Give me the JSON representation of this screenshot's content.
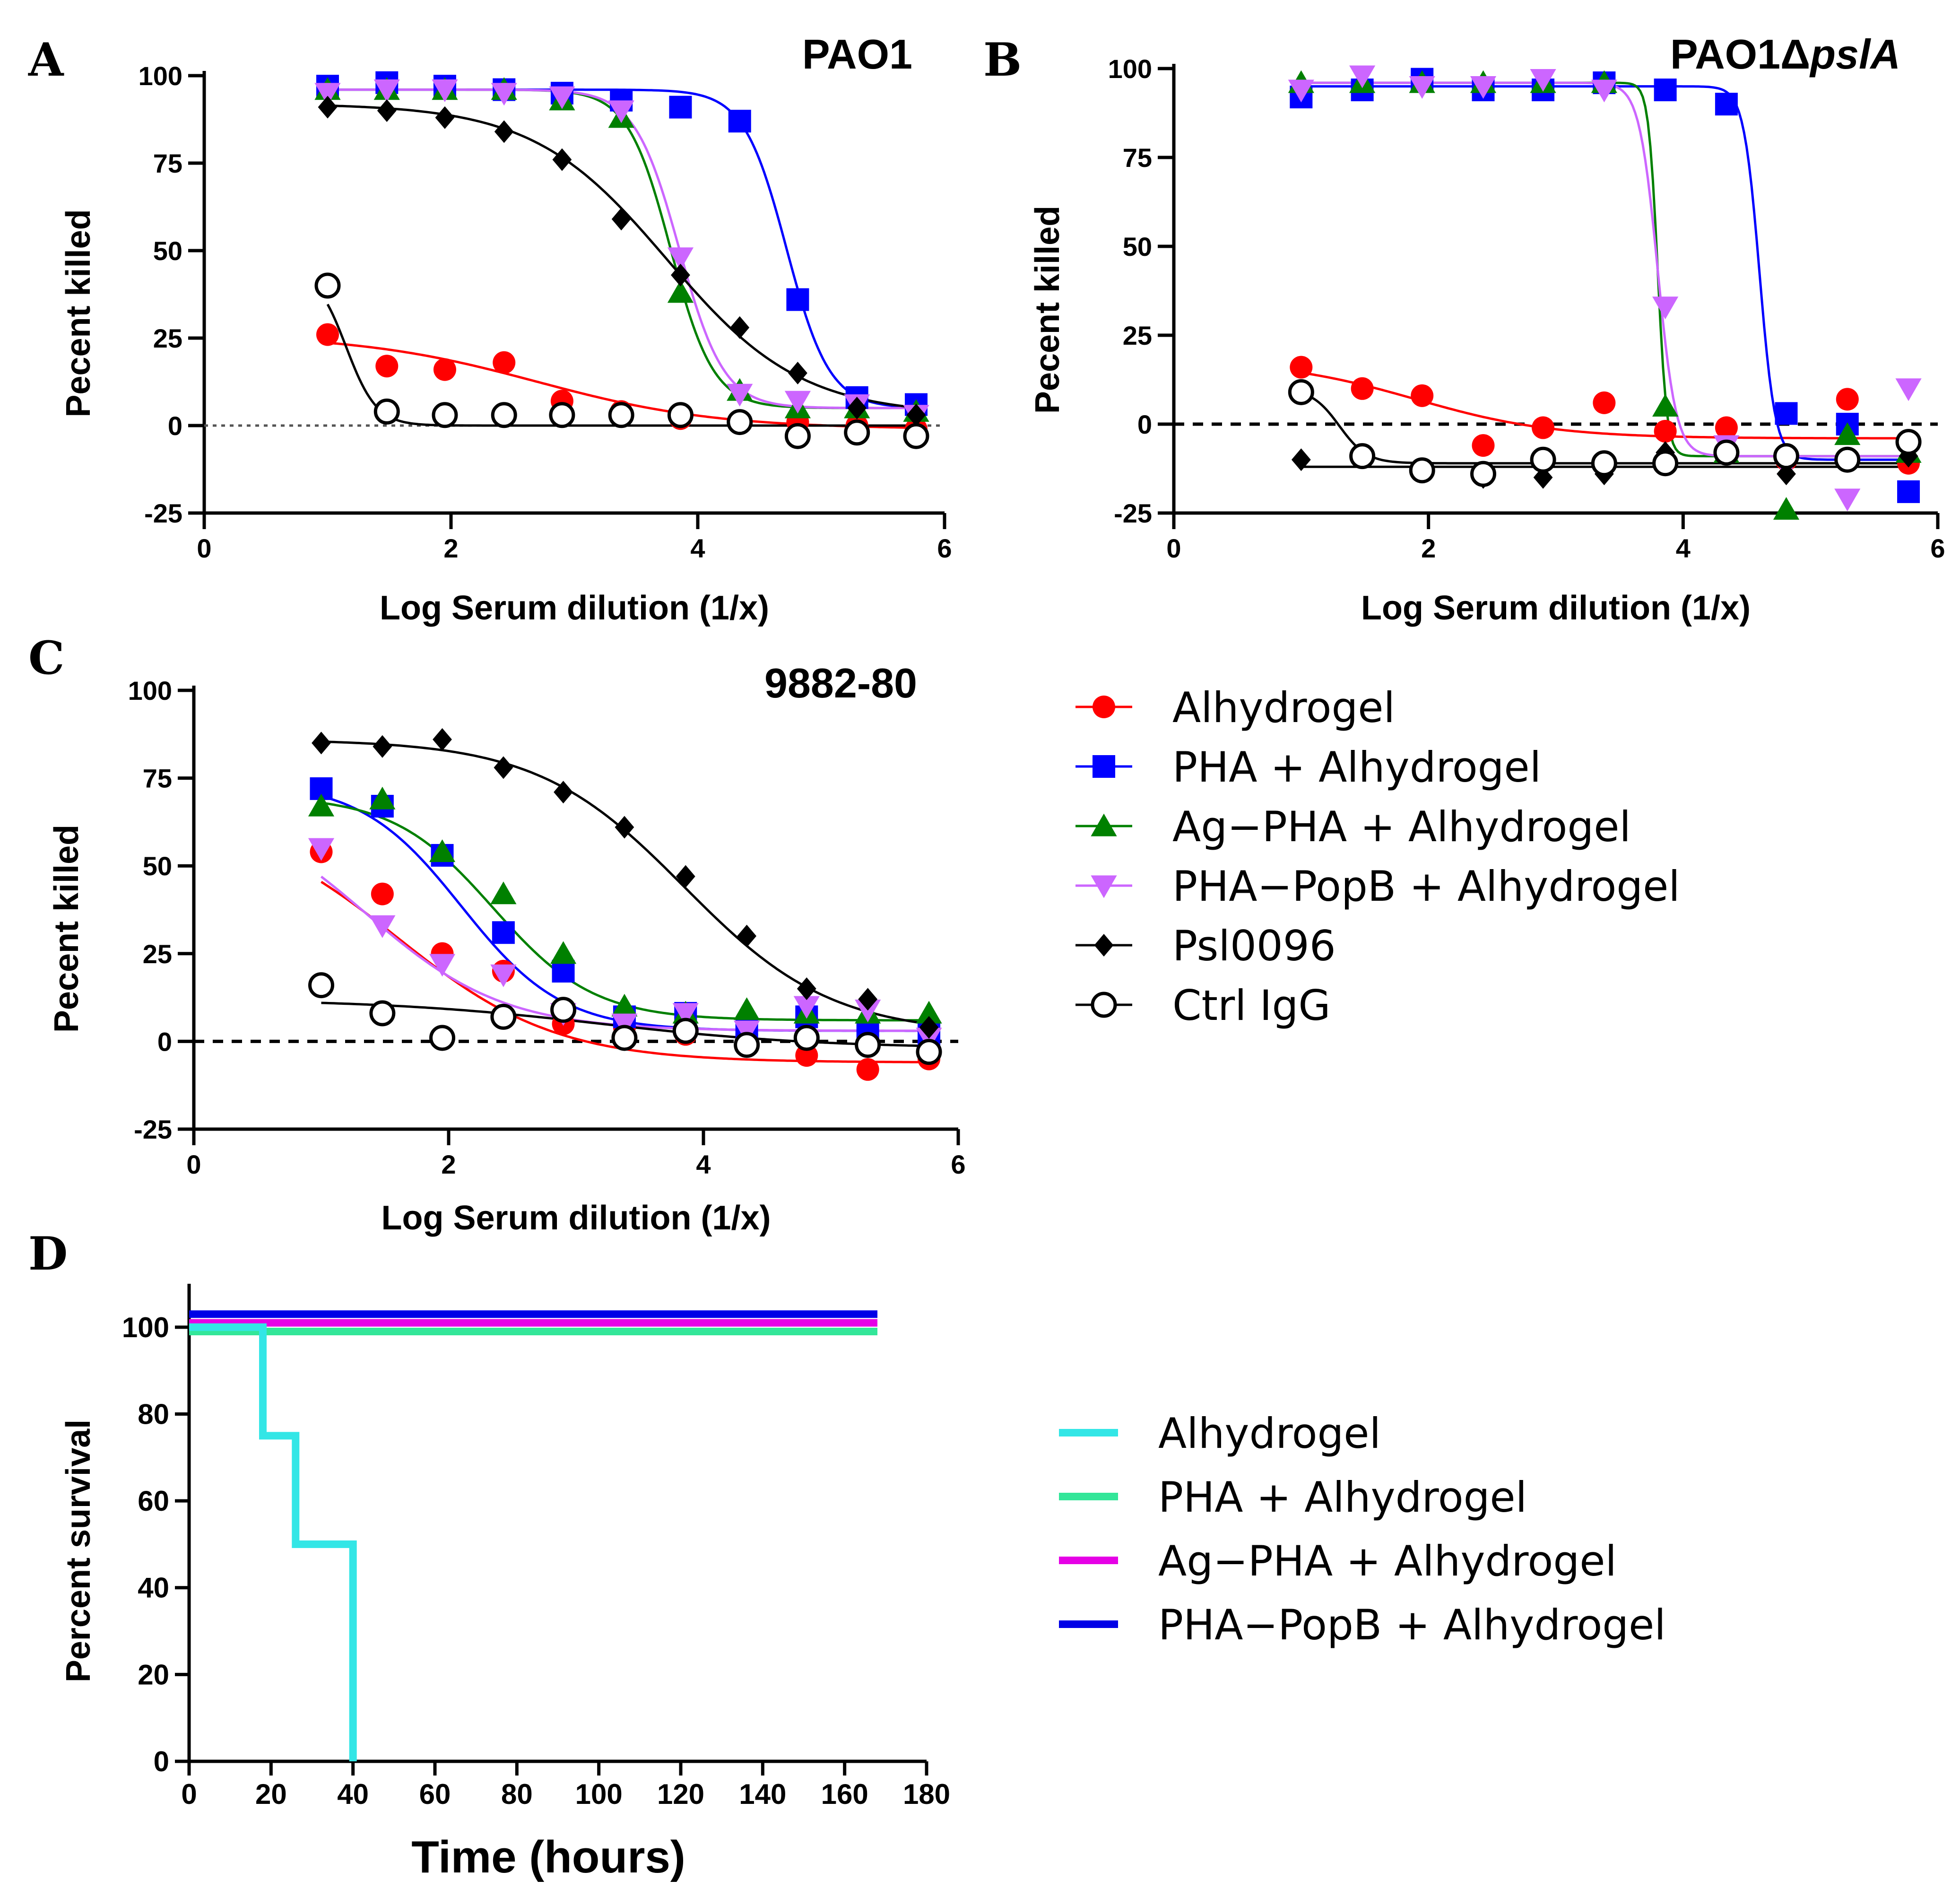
{
  "figure": {
    "legend_top": {
      "entries": [
        {
          "label": "Alhydrogel",
          "color": "#ff0000",
          "marker": "circle"
        },
        {
          "label": "PHA + Alhydrogel",
          "color": "#0000ff",
          "marker": "square"
        },
        {
          "label": "Ag−PHA + Alhydrogel",
          "color": "#008000",
          "marker": "triangle-up"
        },
        {
          "label": "PHA−PopB + Alhydrogel",
          "color": "#cc66ff",
          "marker": "triangle-down"
        },
        {
          "label": "Psl0096",
          "color": "#000000",
          "marker": "diamond"
        },
        {
          "label": "Ctrl IgG",
          "color": "#000000",
          "marker": "open-circle"
        }
      ]
    },
    "legend_bottom": {
      "entries": [
        {
          "label": "Alhydrogel",
          "color": "#33e6e6"
        },
        {
          "label": "PHA + Alhydrogel",
          "color": "#33e699"
        },
        {
          "label": "Ag−PHA + Alhydrogel",
          "color": "#e600e6"
        },
        {
          "label": "PHA−PopB + Alhydrogel",
          "color": "#0000e6"
        }
      ]
    }
  },
  "chart_data": [
    {
      "panel": "A",
      "type": "scatter",
      "title": "PAO1",
      "xlabel": "Log Serum dilution (1/x)",
      "ylabel": "Pecent killed",
      "xlim": [
        0,
        6
      ],
      "ylim": [
        -25,
        100
      ],
      "xticks": [
        0,
        2,
        4,
        6
      ],
      "yticks": [
        -25,
        0,
        25,
        50,
        75,
        100
      ],
      "zero_line": "dotted",
      "x": [
        1.0,
        1.48,
        1.95,
        2.43,
        2.9,
        3.38,
        3.86,
        4.34,
        4.81,
        5.29,
        5.77
      ],
      "series": [
        {
          "name": "Alhydrogel",
          "values": [
            26,
            17,
            16,
            18,
            7,
            4,
            2,
            1,
            1,
            0,
            -1
          ],
          "fit": {
            "top": 26,
            "bottom": -1,
            "ec50": 2.7,
            "hill": 0.6
          }
        },
        {
          "name": "PHA + Alhydrogel",
          "values": [
            97,
            98,
            97,
            96,
            95,
            93,
            91,
            87,
            36,
            8,
            6
          ],
          "fit": {
            "top": 96,
            "bottom": 5,
            "ec50": 4.72,
            "hill": 2.5
          }
        },
        {
          "name": "Ag−PHA + Alhydrogel",
          "values": [
            96,
            96,
            96,
            96,
            93,
            88,
            38,
            10,
            5,
            5,
            4
          ],
          "fit": {
            "top": 96,
            "bottom": 5,
            "ec50": 3.78,
            "hill": 2.5
          }
        },
        {
          "name": "PHA−PopB + Alhydrogel",
          "values": [
            95,
            96,
            96,
            95,
            94,
            90,
            48,
            9,
            7,
            6,
            3
          ],
          "fit": {
            "top": 96,
            "bottom": 5,
            "ec50": 3.85,
            "hill": 2.4
          }
        },
        {
          "name": "Psl0096",
          "values": [
            91,
            90,
            88,
            84,
            76,
            59,
            43,
            28,
            15,
            5,
            3
          ],
          "fit": {
            "top": 92,
            "bottom": 3,
            "ec50": 3.75,
            "hill": 0.8
          }
        },
        {
          "name": "Ctrl IgG",
          "values": [
            40,
            4,
            3,
            3,
            3,
            3,
            3,
            1,
            -3,
            -2,
            -3
          ],
          "fit": {
            "top": 45,
            "bottom": 0,
            "ec50": 1.15,
            "hill": 3.5
          }
        }
      ]
    },
    {
      "panel": "B",
      "type": "scatter",
      "title": "PAO1Δ",
      "title_italic": "pslA",
      "xlabel": "Log Serum dilution (1/x)",
      "ylabel": "Pecent killed",
      "xlim": [
        0,
        6
      ],
      "ylim": [
        -25,
        100
      ],
      "xticks": [
        0,
        2,
        4,
        6
      ],
      "yticks": [
        -25,
        0,
        25,
        50,
        75,
        100
      ],
      "zero_line": "dashed",
      "x": [
        1.0,
        1.48,
        1.95,
        2.43,
        2.9,
        3.38,
        3.86,
        4.34,
        4.81,
        5.29,
        5.77
      ],
      "series": [
        {
          "name": "Alhydrogel",
          "values": [
            16,
            10,
            8,
            -6,
            -1,
            6,
            -2,
            -1,
            -10,
            7,
            -11
          ],
          "fit": {
            "top": 18,
            "bottom": -4,
            "ec50": 1.9,
            "hill": 0.8
          }
        },
        {
          "name": "PHA + Alhydrogel",
          "values": [
            92,
            94,
            97,
            94,
            94,
            96,
            94,
            90,
            3,
            0,
            -19
          ],
          "fit": {
            "top": 95,
            "bottom": -10,
            "ec50": 4.6,
            "hill": 7
          }
        },
        {
          "name": "Ag−PHA + Alhydrogel",
          "values": [
            96,
            96,
            96,
            96,
            96,
            96,
            5,
            -8,
            -24,
            -3,
            -8
          ],
          "fit": {
            "top": 96,
            "bottom": -9,
            "ec50": 3.8,
            "hill": 12
          }
        },
        {
          "name": "PHA−PopB + Alhydrogel",
          "values": [
            94,
            98,
            95,
            95,
            97,
            94,
            33,
            -6,
            -12,
            -21,
            10
          ],
          "fit": {
            "top": 96,
            "bottom": -9,
            "ec50": 3.8,
            "hill": 6
          }
        },
        {
          "name": "Psl0096",
          "values": [
            -10,
            -9,
            -13,
            -15,
            -15,
            -14,
            -8,
            -8,
            -14,
            -10,
            -9
          ],
          "fit": {
            "top": -12,
            "bottom": -12,
            "ec50": 3,
            "hill": 1
          }
        },
        {
          "name": "Ctrl IgG",
          "values": [
            9,
            -9,
            -13,
            -14,
            -10,
            -11,
            -11,
            -8,
            -9,
            -10,
            -5
          ],
          "fit": {
            "top": 10,
            "bottom": -11,
            "ec50": 1.3,
            "hill": 4
          }
        }
      ]
    },
    {
      "panel": "C",
      "type": "scatter",
      "title": "9882-80",
      "xlabel": "Log Serum dilution (1/x)",
      "ylabel": "Pecent killed",
      "xlim": [
        0,
        6
      ],
      "ylim": [
        -25,
        100
      ],
      "xticks": [
        0,
        2,
        4,
        6
      ],
      "yticks": [
        -25,
        0,
        25,
        50,
        75,
        100
      ],
      "zero_line": "dashed",
      "x": [
        1.0,
        1.48,
        1.95,
        2.43,
        2.9,
        3.38,
        3.86,
        4.34,
        4.81,
        5.29,
        5.77
      ],
      "series": [
        {
          "name": "Alhydrogel",
          "values": [
            54,
            42,
            25,
            20,
            5,
            4,
            2,
            2,
            -4,
            -8,
            -5
          ],
          "fit": {
            "top": 65,
            "bottom": -6,
            "ec50": 1.6,
            "hill": 0.7
          }
        },
        {
          "name": "PHA + Alhydrogel",
          "values": [
            72,
            67,
            53,
            31,
            20,
            7,
            8,
            3,
            7,
            2,
            2
          ],
          "fit": {
            "top": 74,
            "bottom": 3,
            "ec50": 2.1,
            "hill": 1.1
          }
        },
        {
          "name": "Ag−PHA + Alhydrogel",
          "values": [
            67,
            69,
            54,
            42,
            25,
            10,
            8,
            9,
            8,
            8,
            8
          ],
          "fit": {
            "top": 70,
            "bottom": 6,
            "ec50": 2.35,
            "hill": 1.1
          }
        },
        {
          "name": "PHA−PopB + Alhydrogel",
          "values": [
            55,
            33,
            22,
            19,
            8,
            5,
            8,
            3,
            10,
            9,
            1
          ],
          "fit": {
            "top": 70,
            "bottom": 3,
            "ec50": 1.35,
            "hill": 0.8
          }
        },
        {
          "name": "Psl0096",
          "values": [
            85,
            84,
            86,
            78,
            71,
            61,
            47,
            30,
            15,
            12,
            4
          ],
          "fit": {
            "top": 86,
            "bottom": 2,
            "ec50": 3.85,
            "hill": 0.75
          }
        },
        {
          "name": "Ctrl IgG",
          "values": [
            16,
            8,
            1,
            7,
            9,
            1,
            3,
            -1,
            1,
            -1,
            -3
          ],
          "fit": {
            "top": 12,
            "bottom": -2,
            "ec50": 3.2,
            "hill": 0.5
          }
        }
      ]
    },
    {
      "panel": "D",
      "type": "line",
      "title": "",
      "xlabel": "Time (hours)",
      "ylabel": "Percent survival",
      "xlim": [
        0,
        180
      ],
      "ylim": [
        0,
        110
      ],
      "xticks": [
        0,
        20,
        40,
        60,
        80,
        100,
        120,
        140,
        160,
        180
      ],
      "yticks": [
        0,
        20,
        40,
        60,
        80,
        100
      ],
      "series": [
        {
          "name": "Alhydrogel",
          "steps": [
            [
              0,
              100
            ],
            [
              18,
              100
            ],
            [
              18,
              75
            ],
            [
              26,
              75
            ],
            [
              26,
              50
            ],
            [
              40,
              50
            ],
            [
              40,
              0
            ]
          ]
        },
        {
          "name": "PHA + Alhydrogel",
          "steps": [
            [
              0,
              99
            ],
            [
              168,
              99
            ]
          ]
        },
        {
          "name": "Ag−PHA + Alhydrogel",
          "steps": [
            [
              0,
              101
            ],
            [
              168,
              101
            ]
          ]
        },
        {
          "name": "PHA−PopB + Alhydrogel",
          "steps": [
            [
              0,
              103
            ],
            [
              168,
              103
            ]
          ]
        }
      ]
    }
  ]
}
